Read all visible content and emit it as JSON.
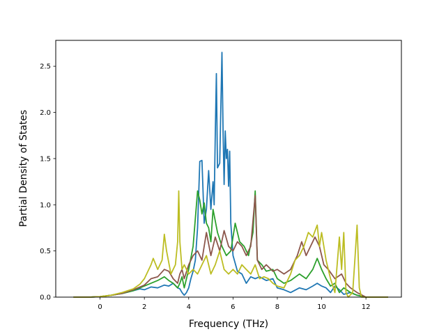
{
  "chart_data": {
    "type": "line",
    "title": "",
    "xlabel": "Frequency (THz)",
    "ylabel": "Partial Density of States",
    "xlim": [
      -2.0,
      13.6
    ],
    "ylim": [
      0.0,
      2.78
    ],
    "xticks": [
      "0",
      "2",
      "4",
      "6",
      "8",
      "10",
      "12"
    ],
    "xtick_values": [
      0,
      2,
      4,
      6,
      8,
      10,
      12
    ],
    "yticks": [
      "0.0",
      "0.5",
      "1.0",
      "1.5",
      "2.0",
      "2.5"
    ],
    "ytick_values": [
      0.0,
      0.5,
      1.0,
      1.5,
      2.0,
      2.5
    ],
    "grid": false,
    "legend": "none",
    "series": [
      {
        "color": "#1f77b4",
        "x": [
          -1.2,
          -0.5,
          0,
          0.5,
          1.0,
          1.5,
          1.8,
          2.0,
          2.3,
          2.6,
          2.9,
          3.1,
          3.3,
          3.5,
          3.6,
          3.7,
          3.8,
          3.9,
          4.0,
          4.1,
          4.2,
          4.3,
          4.4,
          4.5,
          4.6,
          4.7,
          4.8,
          4.9,
          5.0,
          5.1,
          5.15,
          5.2,
          5.25,
          5.3,
          5.4,
          5.5,
          5.55,
          5.6,
          5.65,
          5.7,
          5.75,
          5.8,
          5.85,
          5.9,
          6.0,
          6.2,
          6.4,
          6.6,
          6.8,
          7.0,
          7.2,
          7.5,
          7.8,
          8.0,
          8.3,
          8.6,
          9.0,
          9.3,
          9.6,
          9.8,
          10.0,
          10.2,
          10.4,
          10.6,
          10.8,
          11.0,
          11.3,
          11.6,
          12.0,
          13.0
        ],
        "y": [
          0.0,
          0.0,
          0.005,
          0.02,
          0.04,
          0.07,
          0.09,
          0.08,
          0.11,
          0.1,
          0.13,
          0.12,
          0.15,
          0.1,
          0.09,
          0.05,
          0.02,
          0.05,
          0.1,
          0.2,
          0.28,
          0.4,
          0.75,
          1.47,
          1.48,
          0.8,
          0.95,
          1.37,
          0.95,
          1.25,
          1.0,
          1.75,
          2.42,
          1.4,
          1.45,
          2.65,
          1.8,
          1.22,
          1.8,
          1.5,
          1.6,
          1.2,
          1.58,
          0.8,
          0.45,
          0.28,
          0.25,
          0.15,
          0.22,
          0.2,
          0.22,
          0.18,
          0.2,
          0.1,
          0.08,
          0.05,
          0.1,
          0.08,
          0.12,
          0.15,
          0.12,
          0.1,
          0.05,
          0.12,
          0.08,
          0.03,
          0.05,
          0.02,
          0.0,
          0.0
        ]
      },
      {
        "color": "#2ca02c",
        "x": [
          -1.2,
          -0.5,
          0,
          0.5,
          1.0,
          1.5,
          1.8,
          2.0,
          2.3,
          2.6,
          2.9,
          3.1,
          3.3,
          3.5,
          3.6,
          3.7,
          3.8,
          4.0,
          4.2,
          4.4,
          4.5,
          4.6,
          4.7,
          4.8,
          4.9,
          5.0,
          5.1,
          5.3,
          5.5,
          5.7,
          5.9,
          6.1,
          6.3,
          6.5,
          6.7,
          6.9,
          7.0,
          7.1,
          7.3,
          7.5,
          7.8,
          8.0,
          8.3,
          8.6,
          9.0,
          9.3,
          9.6,
          9.8,
          10.0,
          10.2,
          10.4,
          10.6,
          10.8,
          11.0,
          11.3,
          11.6,
          12.0,
          13.0
        ],
        "y": [
          0.0,
          0.0,
          0.005,
          0.02,
          0.04,
          0.07,
          0.1,
          0.12,
          0.15,
          0.18,
          0.22,
          0.18,
          0.15,
          0.1,
          0.15,
          0.22,
          0.1,
          0.3,
          0.55,
          1.15,
          1.05,
          0.9,
          1.02,
          0.8,
          0.75,
          0.6,
          0.95,
          0.7,
          0.55,
          0.45,
          0.5,
          0.8,
          0.6,
          0.55,
          0.45,
          0.7,
          1.15,
          0.4,
          0.35,
          0.28,
          0.3,
          0.2,
          0.15,
          0.18,
          0.25,
          0.2,
          0.3,
          0.42,
          0.3,
          0.2,
          0.12,
          0.15,
          0.05,
          0.1,
          0.05,
          0.02,
          0.0,
          0.0
        ]
      },
      {
        "color": "#8c564b",
        "x": [
          -1.2,
          -0.5,
          0,
          0.5,
          1.0,
          1.5,
          1.8,
          2.0,
          2.3,
          2.6,
          2.9,
          3.1,
          3.3,
          3.5,
          3.6,
          3.7,
          3.8,
          4.0,
          4.2,
          4.4,
          4.6,
          4.8,
          5.0,
          5.2,
          5.4,
          5.6,
          5.8,
          6.0,
          6.2,
          6.4,
          6.6,
          6.8,
          7.0,
          7.1,
          7.3,
          7.5,
          7.8,
          8.0,
          8.3,
          8.6,
          8.9,
          9.1,
          9.3,
          9.5,
          9.7,
          9.9,
          10.1,
          10.3,
          10.6,
          10.9,
          11.1,
          11.3,
          11.6,
          12.0,
          13.0
        ],
        "y": [
          0.0,
          0.0,
          0.005,
          0.02,
          0.04,
          0.08,
          0.11,
          0.13,
          0.2,
          0.22,
          0.3,
          0.28,
          0.2,
          0.15,
          0.25,
          0.3,
          0.2,
          0.35,
          0.45,
          0.5,
          0.4,
          0.7,
          0.45,
          0.65,
          0.5,
          0.72,
          0.55,
          0.5,
          0.6,
          0.55,
          0.45,
          0.55,
          1.1,
          0.4,
          0.3,
          0.35,
          0.28,
          0.3,
          0.25,
          0.3,
          0.45,
          0.6,
          0.45,
          0.55,
          0.65,
          0.55,
          0.35,
          0.3,
          0.2,
          0.25,
          0.15,
          0.1,
          0.05,
          0.0,
          0.0
        ]
      },
      {
        "color": "#bcbd22",
        "x": [
          -1.2,
          -0.5,
          0,
          0.5,
          1.0,
          1.5,
          1.8,
          2.0,
          2.3,
          2.4,
          2.6,
          2.8,
          2.9,
          3.0,
          3.2,
          3.4,
          3.5,
          3.55,
          3.6,
          3.7,
          3.8,
          4.0,
          4.2,
          4.4,
          4.6,
          4.8,
          5.0,
          5.2,
          5.4,
          5.6,
          5.8,
          6.0,
          6.2,
          6.4,
          6.6,
          6.8,
          7.0,
          7.2,
          7.4,
          7.6,
          7.8,
          8.0,
          8.3,
          8.6,
          8.8,
          9.0,
          9.2,
          9.4,
          9.6,
          9.8,
          9.9,
          10.0,
          10.2,
          10.4,
          10.6,
          10.8,
          10.9,
          11.0,
          11.1,
          11.2,
          11.4,
          11.5,
          11.6,
          11.7,
          11.8,
          12.0,
          13.0
        ],
        "y": [
          0.0,
          0.0,
          0.005,
          0.02,
          0.05,
          0.09,
          0.14,
          0.2,
          0.35,
          0.42,
          0.3,
          0.4,
          0.68,
          0.5,
          0.25,
          0.35,
          0.6,
          1.15,
          0.6,
          0.3,
          0.35,
          0.25,
          0.3,
          0.25,
          0.35,
          0.45,
          0.25,
          0.35,
          0.5,
          0.3,
          0.25,
          0.3,
          0.25,
          0.35,
          0.3,
          0.25,
          0.35,
          0.2,
          0.22,
          0.2,
          0.15,
          0.12,
          0.1,
          0.25,
          0.4,
          0.45,
          0.55,
          0.7,
          0.65,
          0.78,
          0.55,
          0.7,
          0.4,
          0.2,
          0.05,
          0.65,
          0.3,
          0.7,
          0.05,
          0.0,
          0.05,
          0.4,
          0.78,
          0.1,
          0.0,
          0.0,
          0.0
        ]
      }
    ]
  }
}
